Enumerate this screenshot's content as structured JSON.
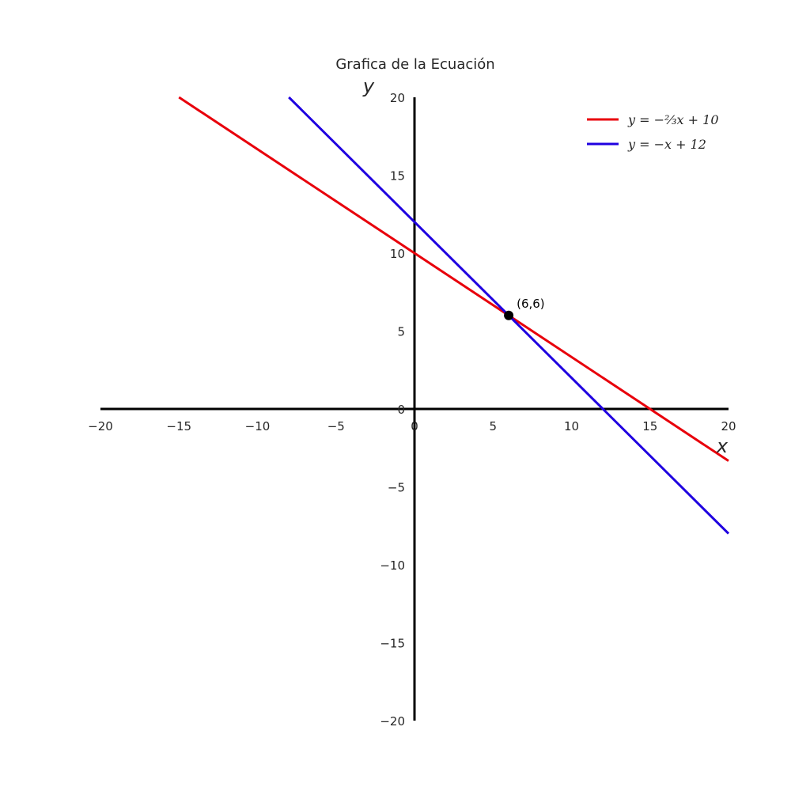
{
  "chart_data": {
    "type": "line",
    "title": "Grafica de la Ecuación",
    "xlabel": "x",
    "ylabel": "y",
    "xlim": [
      -20,
      20
    ],
    "ylim": [
      -20,
      20
    ],
    "grid": false,
    "legend_position": "top-right",
    "x_ticks": [
      -20,
      -15,
      -10,
      -5,
      0,
      5,
      10,
      15,
      20
    ],
    "x_tick_labels": [
      "−20",
      "−15",
      "−10",
      "−5",
      "0",
      "5",
      "10",
      "15",
      "20"
    ],
    "y_ticks": [
      20,
      15,
      10,
      5,
      0,
      -5,
      -10,
      -15,
      -20
    ],
    "y_tick_labels": [
      "20",
      "15",
      "10",
      "5",
      "0",
      "−5",
      "−10",
      "−15",
      "−20"
    ],
    "series": [
      {
        "name": "y = −(2/3)x + 10",
        "legend_text": "y = −⅔x + 10",
        "color": "#e8000b",
        "x": [
          -15,
          20
        ],
        "y": [
          20,
          -3.333
        ]
      },
      {
        "name": "y = −x + 12",
        "legend_text": "y = −x + 12",
        "color": "#1f00e0",
        "x": [
          -8,
          20
        ],
        "y": [
          20,
          -8
        ]
      }
    ],
    "points": [
      {
        "x": 6,
        "y": 6,
        "label": "(6,6)",
        "color": "#000000"
      }
    ]
  }
}
